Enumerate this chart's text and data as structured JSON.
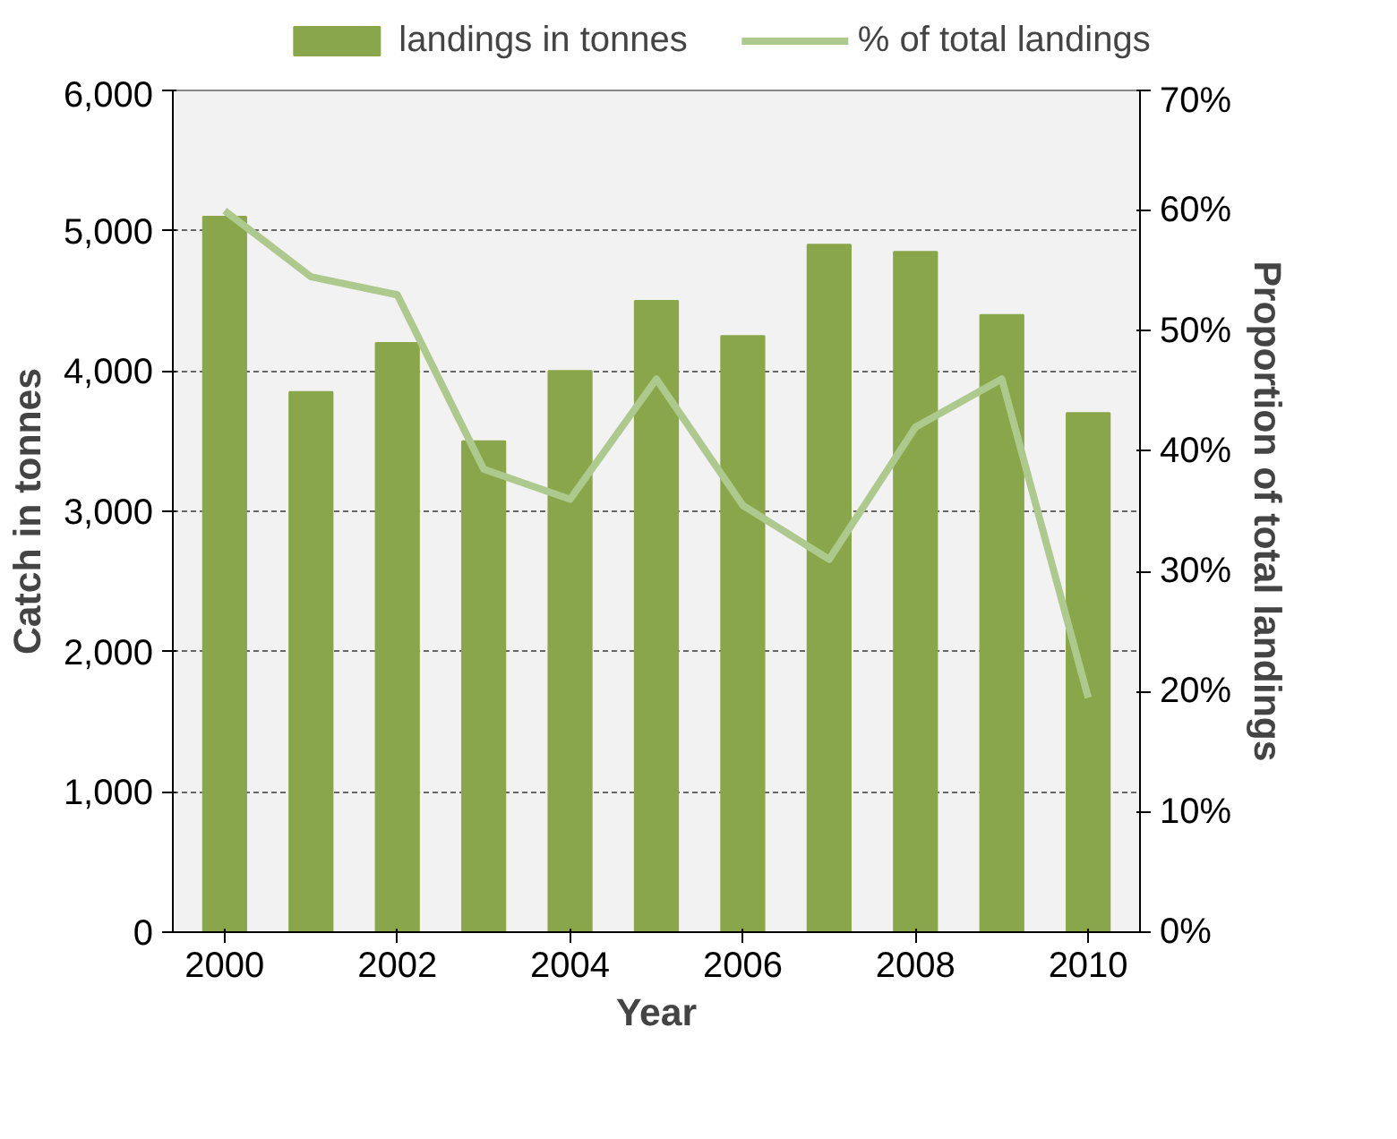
{
  "chart_data": {
    "type": "bar",
    "xlabel": "Year",
    "ylabel": "Catch in tonnes",
    "y2label": "Proportion of total landings",
    "x": [
      2000,
      2001,
      2002,
      2003,
      2004,
      2005,
      2006,
      2007,
      2008,
      2009,
      2010
    ],
    "series": [
      {
        "name": "landings in tonnes",
        "color": "#8aa64a",
        "values": [
          5100,
          3850,
          4200,
          3500,
          4000,
          4500,
          4250,
          4900,
          4850,
          4400,
          3700
        ]
      },
      {
        "name": "% of total landings",
        "type": "line",
        "axis": "y2",
        "color": "#adc98e",
        "values": [
          60,
          54.5,
          53,
          38.5,
          36,
          46,
          35.5,
          31,
          42,
          46,
          19.5
        ]
      }
    ],
    "xlim": [
      1999.4,
      2010.6
    ],
    "xticks": [
      2000,
      2002,
      2004,
      2006,
      2008,
      2010
    ],
    "ylim": [
      0,
      6000
    ],
    "yticks": [
      {
        "value": 0,
        "label": "0"
      },
      {
        "value": 1000,
        "label": "1,000"
      },
      {
        "value": 2000,
        "label": "2,000"
      },
      {
        "value": 3000,
        "label": "3,000"
      },
      {
        "value": 4000,
        "label": "4,000"
      },
      {
        "value": 5000,
        "label": "5,000"
      },
      {
        "value": 6000,
        "label": "6,000"
      }
    ],
    "y2lim": [
      0,
      70
    ],
    "y2ticks": [
      {
        "value": 0,
        "label": "0%"
      },
      {
        "value": 10,
        "label": "10%"
      },
      {
        "value": 20,
        "label": "20%"
      },
      {
        "value": 30,
        "label": "30%"
      },
      {
        "value": 40,
        "label": "40%"
      },
      {
        "value": 50,
        "label": "50%"
      },
      {
        "value": 60,
        "label": "60%"
      },
      {
        "value": 70,
        "label": "70%"
      }
    ],
    "grid": "y",
    "legend": "top",
    "line_style": "solid"
  }
}
